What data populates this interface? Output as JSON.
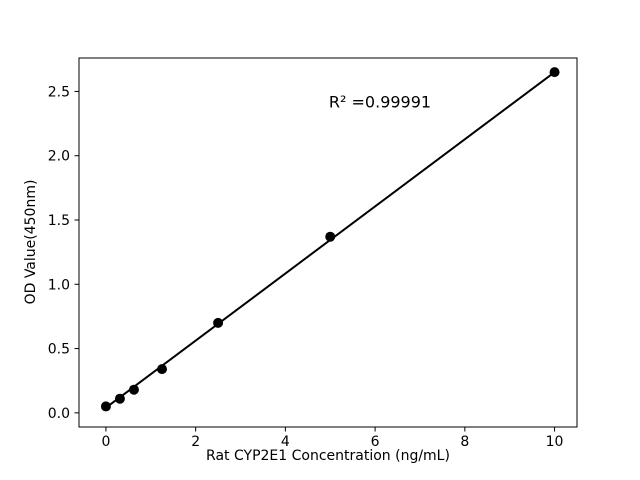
{
  "chart_data": {
    "type": "scatter",
    "title": "",
    "xlabel": "Rat CYP2E1 Concentration (ng/mL)",
    "ylabel": "OD Value(450nm)",
    "annotation": "R² =0.99991",
    "x": [
      0,
      0.3125,
      0.625,
      1.25,
      2.5,
      5,
      10
    ],
    "y": [
      0.05,
      0.11,
      0.18,
      0.34,
      0.7,
      1.37,
      2.65
    ],
    "trendline": {
      "x": [
        0,
        10
      ],
      "y": [
        0.04,
        2.65
      ]
    },
    "xlim": [
      -0.6,
      10.5
    ],
    "ylim": [
      -0.11,
      2.76
    ],
    "xticks": [
      "0",
      "2",
      "4",
      "6",
      "8",
      "10"
    ],
    "yticks": [
      "0.0",
      "0.5",
      "1.0",
      "1.5",
      "2.0",
      "2.5"
    ],
    "grid": false,
    "legend": null,
    "marker_color": "#000000",
    "line_color": "#000000",
    "axis_color": "#000000",
    "background_color": "#ffffff"
  }
}
